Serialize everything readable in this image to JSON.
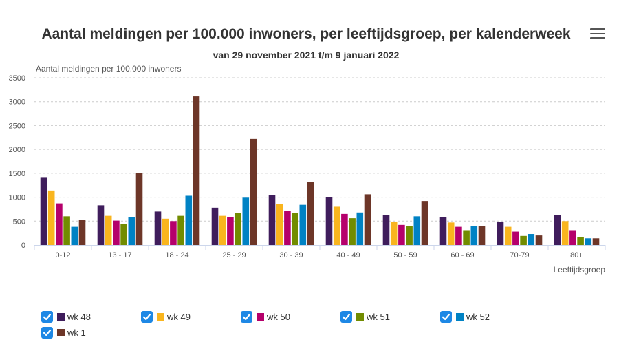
{
  "chart_data": {
    "type": "bar",
    "title": "Aantal meldingen per 100.000 inwoners, per leeftijdsgroep, per kalenderweek",
    "subtitle": "van 29 november 2021 t/m 9 januari 2022",
    "ylabel": "Aantal meldingen per 100.000 inwoners",
    "xlabel": "Leeftijdsgroep",
    "ylim": [
      0,
      3500
    ],
    "yticks": [
      0,
      500,
      1000,
      1500,
      2000,
      2500,
      3000,
      3500
    ],
    "grid": true,
    "legend_position": "bottom",
    "categories": [
      "0-12",
      "13 - 17",
      "18 - 24",
      "25 - 29",
      "30 - 39",
      "40 - 49",
      "50 - 59",
      "60 - 69",
      "70-79",
      "80+"
    ],
    "series": [
      {
        "name": "wk 48",
        "color": "#3f1d5c",
        "values": [
          1420,
          830,
          700,
          780,
          1040,
          1000,
          630,
          590,
          480,
          630
        ]
      },
      {
        "name": "wk 49",
        "color": "#f9b51e",
        "values": [
          1140,
          610,
          550,
          610,
          850,
          800,
          490,
          470,
          380,
          500
        ]
      },
      {
        "name": "wk 50",
        "color": "#b5006b",
        "values": [
          870,
          510,
          500,
          590,
          720,
          650,
          420,
          380,
          280,
          310
        ]
      },
      {
        "name": "wk 51",
        "color": "#728c00",
        "values": [
          600,
          440,
          610,
          670,
          670,
          560,
          400,
          310,
          190,
          160
        ]
      },
      {
        "name": "wk 52",
        "color": "#0082c4",
        "values": [
          380,
          590,
          1030,
          990,
          840,
          680,
          600,
          400,
          230,
          140
        ]
      },
      {
        "name": "wk 1",
        "color": "#6d3628",
        "values": [
          520,
          1500,
          3110,
          2220,
          1320,
          1060,
          920,
          390,
          200,
          140
        ]
      }
    ]
  },
  "menu": {
    "icon": "hamburger-menu-icon"
  }
}
